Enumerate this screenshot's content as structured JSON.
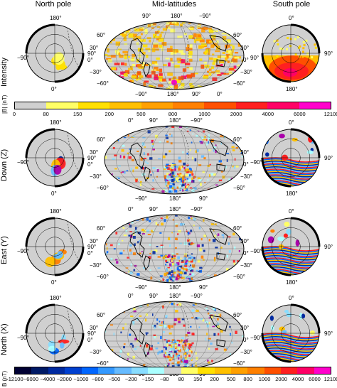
{
  "columns": [
    "North pole",
    "Mid-latitudes",
    "South pole"
  ],
  "rows": [
    "Intensity",
    "Down (Z)",
    "East (Y)",
    "North (X)"
  ],
  "intensity_colorbar": {
    "label": "|B| (nT)",
    "ticks": [
      "0",
      "80",
      "150",
      "200",
      "500",
      "800",
      "1000",
      "2000",
      "4000",
      "6000",
      "12100"
    ],
    "colors": [
      "#d0d0d0",
      "#ffff66",
      "#ffe000",
      "#ffc000",
      "#ffa000",
      "#ff8000",
      "#ff5000",
      "#ff2020",
      "#ff0066",
      "#ff00cc"
    ]
  },
  "component_colorbar": {
    "label": "B (nT)",
    "ticks": [
      "−12100",
      "−6000",
      "−4000",
      "−2000",
      "−1000",
      "−800",
      "−500",
      "−200",
      "−150",
      "−80",
      "80",
      "150",
      "200",
      "500",
      "800",
      "1000",
      "2000",
      "4000",
      "6000",
      "12100"
    ],
    "colors": [
      "#000033",
      "#001a66",
      "#002aa0",
      "#0040d0",
      "#0066ff",
      "#3399ff",
      "#66bbff",
      "#88ddff",
      "#aaffff",
      "#d0d0d0",
      "#ffff66",
      "#ffe000",
      "#ffc000",
      "#ffa000",
      "#ff8000",
      "#ff5000",
      "#ff2020",
      "#ff0066",
      "#ff00cc"
    ]
  },
  "north_pole_labels": {
    "top": "180°",
    "left": "−90°",
    "right": "90°",
    "bottom": "0°"
  },
  "south_pole_labels": {
    "top": "0°",
    "left": "−90°",
    "right": "90°",
    "bottom": "180°"
  },
  "intensity_south_pole_labels": {
    "top": "0°",
    "left": "90°",
    "right": "90°",
    "bottom": "180°"
  },
  "mollweide_top": [
    "0°",
    "90°",
    "180°",
    "−90°"
  ],
  "mollweide_top_intensity": [
    "90°",
    "180°",
    "−90°"
  ],
  "mollweide_bottom": [
    "−90°",
    "180°",
    "90°"
  ],
  "mollweide_bottom_intensity": [
    "−90°",
    "180°",
    "90°",
    "0°"
  ],
  "mollweide_lat_left": [
    "60°",
    "30°",
    "0°",
    "−30°",
    "−60°"
  ],
  "mollweide_lat_right": [
    "60°",
    "30°",
    "0°",
    "−30°",
    "−60°"
  ]
}
